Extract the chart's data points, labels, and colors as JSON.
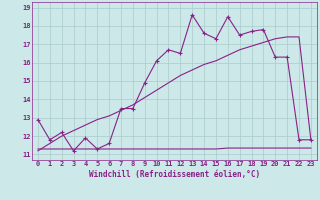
{
  "xlabel": "Windchill (Refroidissement éolien,°C)",
  "xlim": [
    -0.5,
    23.5
  ],
  "ylim": [
    10.7,
    19.3
  ],
  "yticks": [
    11,
    12,
    13,
    14,
    15,
    16,
    17,
    18,
    19
  ],
  "xticks": [
    0,
    1,
    2,
    3,
    4,
    5,
    6,
    7,
    8,
    9,
    10,
    11,
    12,
    13,
    14,
    15,
    16,
    17,
    18,
    19,
    20,
    21,
    22,
    23
  ],
  "bg_color": "#cce8e8",
  "line_color": "#882288",
  "grid_color": "#aacccc",
  "main_x": [
    0,
    1,
    2,
    3,
    4,
    5,
    6,
    7,
    8,
    9,
    10,
    11,
    12,
    13,
    14,
    15,
    16,
    17,
    18,
    19,
    20,
    21,
    22,
    23
  ],
  "main_y": [
    12.9,
    11.8,
    12.2,
    11.2,
    11.9,
    11.3,
    11.6,
    13.5,
    13.5,
    14.9,
    16.1,
    16.7,
    16.5,
    18.6,
    17.6,
    17.3,
    18.5,
    17.5,
    17.7,
    17.8,
    16.3,
    16.3,
    11.8,
    11.8
  ],
  "trend_x": [
    0,
    1,
    2,
    3,
    4,
    5,
    6,
    7,
    8,
    9,
    10,
    11,
    12,
    13,
    14,
    15,
    16,
    17,
    18,
    19,
    20,
    21,
    22,
    23
  ],
  "trend_y": [
    11.2,
    11.6,
    12.0,
    12.3,
    12.6,
    12.9,
    13.1,
    13.4,
    13.7,
    14.1,
    14.5,
    14.9,
    15.3,
    15.6,
    15.9,
    16.1,
    16.4,
    16.7,
    16.9,
    17.1,
    17.3,
    17.4,
    17.4,
    11.8
  ],
  "flat_x": [
    0,
    1,
    2,
    3,
    4,
    5,
    6,
    7,
    8,
    9,
    10,
    11,
    12,
    13,
    14,
    15,
    16,
    17,
    18,
    19,
    20,
    21,
    22,
    23
  ],
  "flat_y": [
    11.3,
    11.3,
    11.3,
    11.3,
    11.3,
    11.3,
    11.3,
    11.3,
    11.3,
    11.3,
    11.3,
    11.3,
    11.3,
    11.3,
    11.3,
    11.3,
    11.35,
    11.35,
    11.35,
    11.35,
    11.35,
    11.35,
    11.35,
    11.35
  ],
  "xlabel_fontsize": 5.5,
  "tick_fontsize": 5.0,
  "linewidth": 0.8
}
